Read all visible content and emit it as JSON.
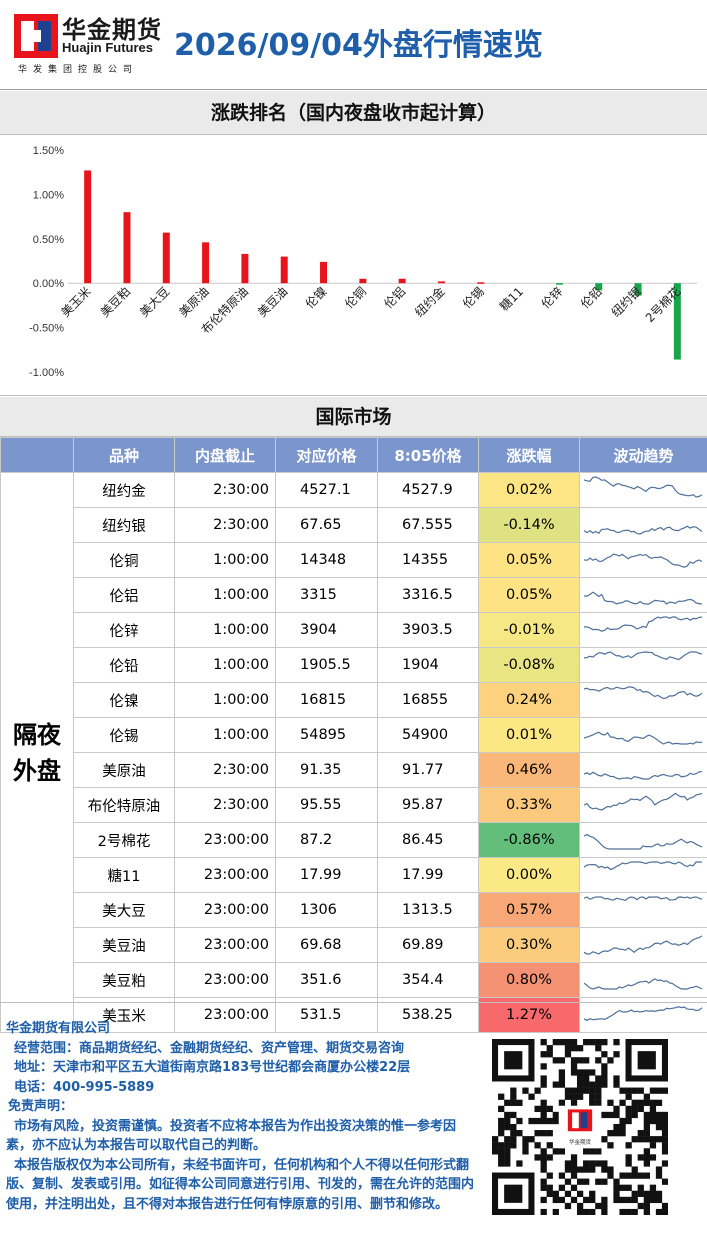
{
  "header": {
    "brand_cn": "华金期货",
    "brand_en": "Huajin Futures",
    "brand_sub": "华发集团控股公司",
    "report_title": "2026/09/04外盘行情速览"
  },
  "rank_section_title": "涨跌排名（国内夜盘收市起计算）",
  "chart_data": {
    "type": "bar",
    "categories": [
      "美玉米",
      "美豆粕",
      "美大豆",
      "美原油",
      "布伦特原油",
      "美豆油",
      "伦镍",
      "伦铜",
      "伦铝",
      "纽约金",
      "伦锡",
      "糖11",
      "伦锌",
      "伦铅",
      "纽约银",
      "2号棉花"
    ],
    "values": [
      1.27,
      0.8,
      0.57,
      0.46,
      0.33,
      0.3,
      0.24,
      0.05,
      0.05,
      0.02,
      0.01,
      0.0,
      -0.01,
      -0.08,
      -0.14,
      -0.86
    ],
    "y_ticks": [
      "1.50%",
      "1.00%",
      "0.50%",
      "0.00%",
      "-0.50%",
      "-1.00%"
    ],
    "ylim": [
      -1.0,
      1.5
    ],
    "colors": {
      "positive": "#e8141c",
      "negative": "#19a64a"
    }
  },
  "intl_section_title": "国际市场",
  "table": {
    "headers": [
      "品种",
      "内盘截止",
      "对应价格",
      "8:05价格",
      "涨跌幅",
      "波动趋势"
    ],
    "group_label_line1": "隔夜",
    "group_label_line2": "外盘",
    "rows": [
      {
        "name": "纽约金",
        "cutoff": "2:30:00",
        "ref_price": "4527.1",
        "price_805": "4527.9",
        "change": "0.02%",
        "bg": "#fbe584"
      },
      {
        "name": "纽约银",
        "cutoff": "2:30:00",
        "ref_price": "67.65",
        "price_805": "67.555",
        "change": "-0.14%",
        "bg": "#dfe283"
      },
      {
        "name": "伦铜",
        "cutoff": "1:00:00",
        "ref_price": "14348",
        "price_805": "14355",
        "change": "0.05%",
        "bg": "#fde383"
      },
      {
        "name": "伦铝",
        "cutoff": "1:00:00",
        "ref_price": "3315",
        "price_805": "3316.5",
        "change": "0.05%",
        "bg": "#fde383"
      },
      {
        "name": "伦锌",
        "cutoff": "1:00:00",
        "ref_price": "3904",
        "price_805": "3903.5",
        "change": "-0.01%",
        "bg": "#f6e884"
      },
      {
        "name": "伦铅",
        "cutoff": "1:00:00",
        "ref_price": "1905.5",
        "price_805": "1904",
        "change": "-0.08%",
        "bg": "#e9e583"
      },
      {
        "name": "伦镍",
        "cutoff": "1:00:00",
        "ref_price": "16815",
        "price_805": "16855",
        "change": "0.24%",
        "bg": "#fcd27f"
      },
      {
        "name": "伦锡",
        "cutoff": "1:00:00",
        "ref_price": "54895",
        "price_805": "54900",
        "change": "0.01%",
        "bg": "#fbe784"
      },
      {
        "name": "美原油",
        "cutoff": "2:30:00",
        "ref_price": "91.35",
        "price_805": "91.77",
        "change": "0.46%",
        "bg": "#f9b87a"
      },
      {
        "name": "布伦特原油",
        "cutoff": "2:30:00",
        "ref_price": "95.55",
        "price_805": "95.87",
        "change": "0.33%",
        "bg": "#fbc97d"
      },
      {
        "name": "2号棉花",
        "cutoff": "23:00:00",
        "ref_price": "87.2",
        "price_805": "86.45",
        "change": "-0.86%",
        "bg": "#63be7b"
      },
      {
        "name": "糖11",
        "cutoff": "23:00:00",
        "ref_price": "17.99",
        "price_805": "17.99",
        "change": "0.00%",
        "bg": "#fbe985"
      },
      {
        "name": "美大豆",
        "cutoff": "23:00:00",
        "ref_price": "1306",
        "price_805": "1313.5",
        "change": "0.57%",
        "bg": "#f8a877"
      },
      {
        "name": "美豆油",
        "cutoff": "23:00:00",
        "ref_price": "69.68",
        "price_805": "69.89",
        "change": "0.30%",
        "bg": "#fbcc7e"
      },
      {
        "name": "美豆粕",
        "cutoff": "23:00:00",
        "ref_price": "351.6",
        "price_805": "354.4",
        "change": "0.80%",
        "bg": "#f59173"
      },
      {
        "name": "美玉米",
        "cutoff": "23:00:00",
        "ref_price": "531.5",
        "price_805": "538.25",
        "change": "1.27%",
        "bg": "#f8696b"
      }
    ]
  },
  "footer": {
    "company": "华金期货有限公司",
    "scope": "经营范围：商品期货经纪、金融期货经纪、资产管理、期货交易咨询",
    "address": "地址：天津市和平区五大道街南京路183号世纪都会商厦办公楼22层",
    "phone": "电话：400-995-5889",
    "disclaimer_title": "免责声明：",
    "disclaimer_1": "市场有风险，投资需谨慎。投资者不应将本报告为作出投资决策的惟一参考因素，亦不应认为本报告可以取代自己的判断。",
    "disclaimer_2": "本报告版权仅为本公司所有，未经书面许可，任何机构和个人不得以任何形式翻版、复制、发表或引用。如征得本公司同意进行引用、刊发的，需在允许的范围内使用，并注明出处，且不得对本报告进行任何有悖原意的引用、删节和修改。",
    "qr_caption": "华金期货"
  }
}
